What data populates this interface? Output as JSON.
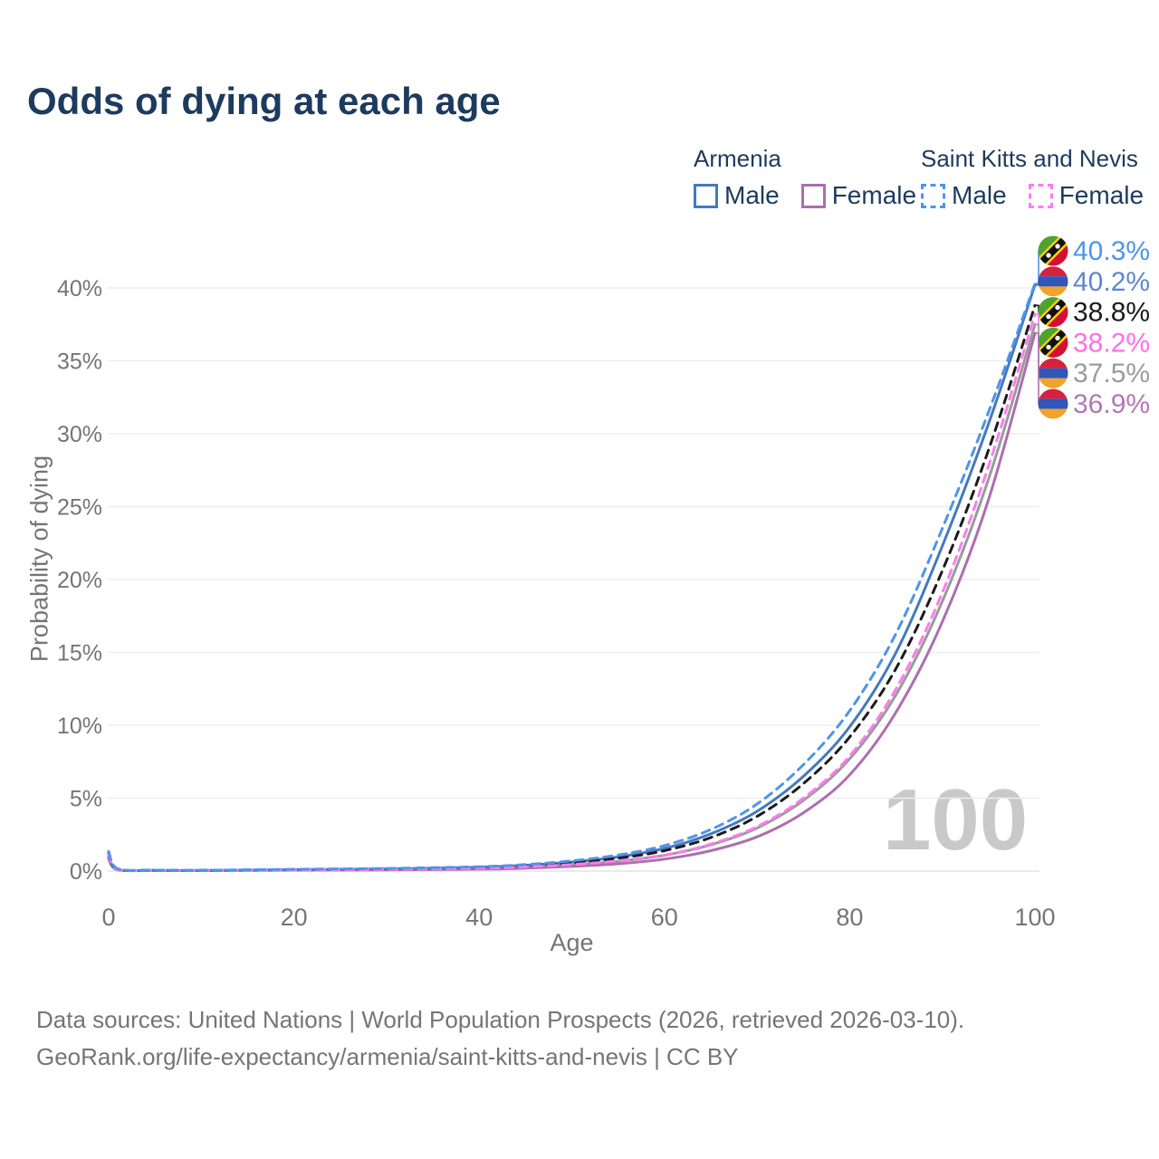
{
  "title": "Odds of dying at each age",
  "watermark": "100",
  "legend": {
    "groups": [
      {
        "id": "armenia",
        "country": "Armenia",
        "underline_style": "solid",
        "underline_color": "#9e9e9e",
        "items": [
          {
            "series": "arm_male",
            "label": "Male"
          },
          {
            "series": "arm_female",
            "label": "Female"
          }
        ]
      },
      {
        "id": "skn",
        "country": "Saint Kitts and Nevis",
        "underline_style": "dashed",
        "underline_color": "#1b1b1b",
        "items": [
          {
            "series": "skn_male",
            "label": "Male"
          },
          {
            "series": "skn_female",
            "label": "Female"
          }
        ]
      }
    ]
  },
  "footer": {
    "line1": "Data sources: United Nations | World Population Prospects (2026, retrieved 2026-03-10).",
    "line2": "GeoRank.org/life-expectancy/armenia/saint-kitts-and-nevis | CC BY"
  },
  "chart_data": {
    "type": "line",
    "title": "Odds of dying at each age",
    "xlabel": "Age",
    "ylabel": "Probability of dying",
    "xlim": [
      0,
      100
    ],
    "ylim_percent": [
      0,
      40
    ],
    "grid": "horizontal-only",
    "x_ticks": {
      "values": [
        0,
        20,
        40,
        60,
        80,
        100
      ],
      "labels": [
        "0",
        "20",
        "40",
        "60",
        "80",
        "100"
      ]
    },
    "y_ticks": {
      "values": [
        0,
        5,
        10,
        15,
        20,
        25,
        30,
        35,
        40
      ],
      "labels": [
        "0%",
        "5%",
        "10%",
        "15%",
        "20%",
        "25%",
        "30%",
        "35%",
        "40%"
      ]
    },
    "unit": "percent probability of dying at each age",
    "ages": [
      0,
      1,
      5,
      10,
      20,
      30,
      40,
      45,
      50,
      55,
      60,
      65,
      70,
      75,
      80,
      85,
      90,
      95,
      100
    ],
    "series": [
      {
        "id": "arm_total",
        "name": "Armenia (both sexes)",
        "country": "Armenia",
        "sex": "total",
        "color": "#9b9b9b",
        "dash": "solid",
        "values": [
          0.9,
          0.09,
          0.045,
          0.035,
          0.08,
          0.11,
          0.18,
          0.28,
          0.44,
          0.68,
          1.08,
          1.8,
          2.95,
          4.85,
          7.7,
          12.1,
          18.5,
          26.9,
          37.5
        ]
      },
      {
        "id": "arm_female",
        "name": "Armenia Female",
        "country": "Armenia",
        "sex": "female",
        "color": "#ab6fae",
        "dash": "solid",
        "values": [
          0.8,
          0.08,
          0.04,
          0.03,
          0.06,
          0.08,
          0.13,
          0.2,
          0.32,
          0.5,
          0.82,
          1.4,
          2.35,
          4.0,
          6.6,
          10.9,
          17.1,
          25.5,
          36.9
        ]
      },
      {
        "id": "arm_male",
        "name": "Armenia Male",
        "country": "Armenia",
        "sex": "male",
        "color": "#4679bd",
        "dash": "solid",
        "values": [
          1.0,
          0.1,
          0.05,
          0.04,
          0.1,
          0.15,
          0.26,
          0.4,
          0.62,
          0.97,
          1.55,
          2.55,
          4.1,
          6.5,
          9.9,
          15.0,
          22.3,
          30.7,
          40.2
        ]
      },
      {
        "id": "skn_total",
        "name": "Saint Kitts and Nevis (both sexes)",
        "country": "Saint Kitts and Nevis",
        "sex": "total",
        "color": "#1b1b1b",
        "dash": "dashed",
        "values": [
          1.25,
          0.12,
          0.055,
          0.045,
          0.1,
          0.14,
          0.24,
          0.36,
          0.56,
          0.88,
          1.4,
          2.3,
          3.75,
          6.0,
          9.2,
          13.9,
          20.6,
          28.9,
          38.8
        ]
      },
      {
        "id": "skn_female",
        "name": "Saint Kitts and Nevis Female",
        "country": "Saint Kitts and Nevis",
        "sex": "female",
        "color": "#ff7bec",
        "dash": "dashed",
        "values": [
          1.15,
          0.1,
          0.05,
          0.04,
          0.08,
          0.11,
          0.19,
          0.29,
          0.45,
          0.7,
          1.1,
          1.85,
          3.05,
          5.0,
          7.9,
          12.5,
          19.1,
          27.8,
          38.2
        ]
      },
      {
        "id": "skn_male",
        "name": "Saint Kitts and Nevis Male",
        "country": "Saint Kitts and Nevis",
        "sex": "male",
        "color": "#4e94ec",
        "dash": "dashed",
        "values": [
          1.35,
          0.15,
          0.06,
          0.05,
          0.12,
          0.18,
          0.3,
          0.45,
          0.7,
          1.1,
          1.75,
          2.85,
          4.6,
          7.3,
          11.0,
          16.3,
          23.5,
          31.5,
          40.3
        ]
      }
    ],
    "end_labels": [
      {
        "text": "40.3%",
        "value_pct": 40.3,
        "flag": "skn",
        "series": "skn_male",
        "color": "#4e94ec"
      },
      {
        "text": "40.2%",
        "value_pct": 40.2,
        "flag": "arm",
        "series": "arm_male",
        "color": "#5f87c9"
      },
      {
        "text": "38.8%",
        "value_pct": 38.8,
        "flag": "skn",
        "series": "skn_total",
        "color": "#1b1b1b"
      },
      {
        "text": "38.2%",
        "value_pct": 38.2,
        "flag": "skn",
        "series": "skn_female",
        "color": "#ff6ee8"
      },
      {
        "text": "37.5%",
        "value_pct": 37.5,
        "flag": "arm",
        "series": "arm_total",
        "color": "#9b9b9b"
      },
      {
        "text": "36.9%",
        "value_pct": 36.9,
        "flag": "arm",
        "series": "arm_female",
        "color": "#b277b6"
      }
    ]
  }
}
